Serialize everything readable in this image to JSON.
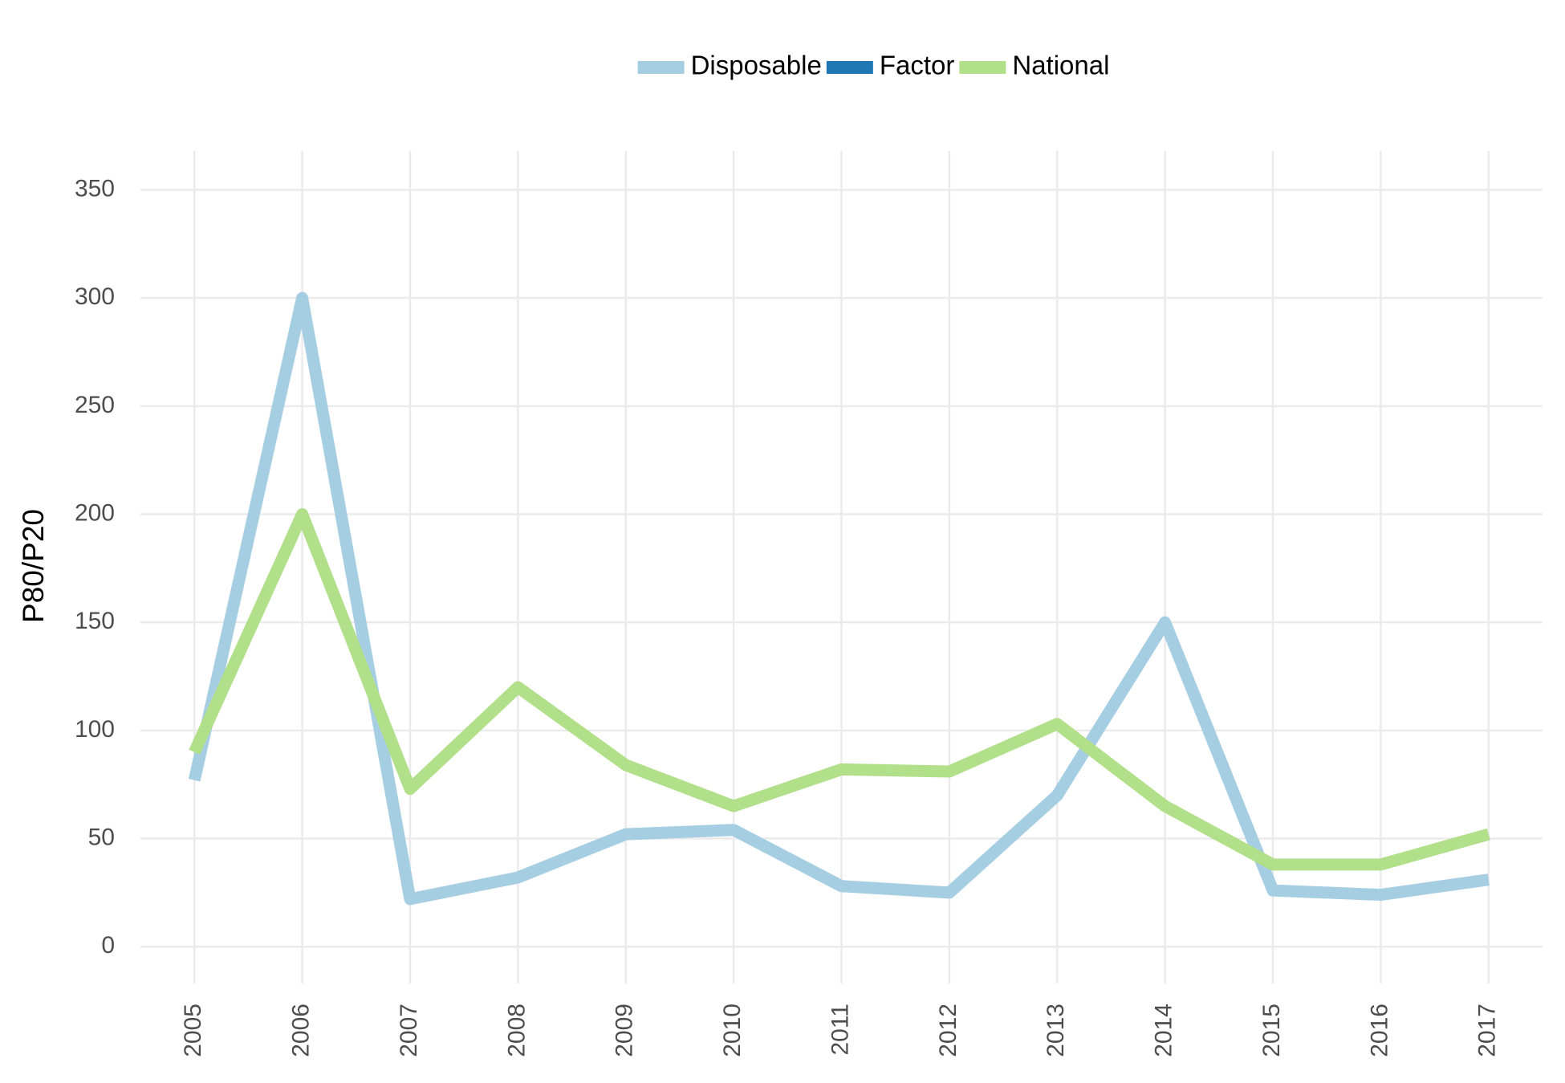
{
  "chart_data": {
    "type": "line",
    "y_label": "P80/P20",
    "x": [
      2005,
      2006,
      2007,
      2008,
      2009,
      2010,
      2011,
      2012,
      2013,
      2014,
      2015,
      2016,
      2017
    ],
    "series": [
      {
        "name": "Disposable",
        "color": "#a6cee3",
        "values": [
          77,
          300,
          22,
          32,
          52,
          54,
          28,
          25,
          70,
          150,
          26,
          24,
          31
        ]
      },
      {
        "name": "Factor",
        "color": "#1f78b4",
        "values": [
          null,
          null,
          null,
          null,
          null,
          null,
          null,
          null,
          null,
          null,
          null,
          null,
          null
        ]
      },
      {
        "name": "National",
        "color": "#b2df8a",
        "values": [
          90,
          200,
          73,
          120,
          84,
          65,
          82,
          81,
          103,
          65,
          38,
          38,
          52
        ]
      }
    ],
    "xlim": [
      2004.5,
      2017.5
    ],
    "xticks": [
      2005,
      2006,
      2007,
      2008,
      2009,
      2010,
      2011,
      2012,
      2013,
      2014,
      2015,
      2016,
      2017
    ],
    "ylim": [
      -17,
      368
    ],
    "yticks": [
      0,
      50,
      100,
      150,
      200,
      250,
      300,
      350
    ],
    "grid": true,
    "legend": "top"
  }
}
